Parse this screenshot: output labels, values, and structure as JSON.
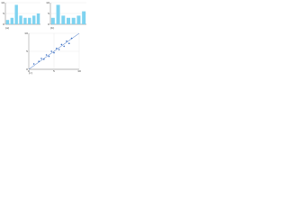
{
  "chart_data": [
    {
      "type": "bar",
      "caption": "(a)",
      "color": "#7fd3f0",
      "categories": [
        null,
        null,
        null,
        null,
        null,
        null,
        null,
        null
      ],
      "values": [
        2,
        3,
        9,
        4,
        3,
        3,
        4,
        5
      ],
      "ylim": [
        0,
        10
      ],
      "yticks": [
        0,
        5,
        10
      ]
    },
    {
      "type": "bar",
      "caption": "(b)",
      "color": "#7fd3f0",
      "categories": [
        null,
        null,
        null,
        null,
        null,
        null,
        null
      ],
      "values": [
        3,
        9,
        4,
        3,
        3,
        4,
        6
      ],
      "ylim": [
        0,
        10
      ],
      "yticks": [
        0,
        5,
        10
      ]
    },
    {
      "type": "scatter",
      "caption": "(c)",
      "color": "#3a6fc4",
      "x": [
        1,
        2,
        2.5,
        3,
        3.5,
        4,
        4.5,
        5,
        5.5,
        6,
        6.5,
        7,
        7.5,
        8,
        8.5
      ],
      "values": [
        1.5,
        2.2,
        3,
        2.8,
        4,
        3.6,
        5,
        4.6,
        5.8,
        5.5,
        6.9,
        6.4,
        7.8,
        7.2,
        8.6
      ],
      "trendline": {
        "x": [
          0,
          10
        ],
        "values": [
          0,
          10
        ],
        "color": "#3a6fc4"
      },
      "xlim": [
        0,
        10
      ],
      "ylim": [
        0,
        10
      ],
      "xticks": [
        0,
        5,
        10
      ],
      "yticks": [
        0,
        5,
        10
      ]
    }
  ]
}
